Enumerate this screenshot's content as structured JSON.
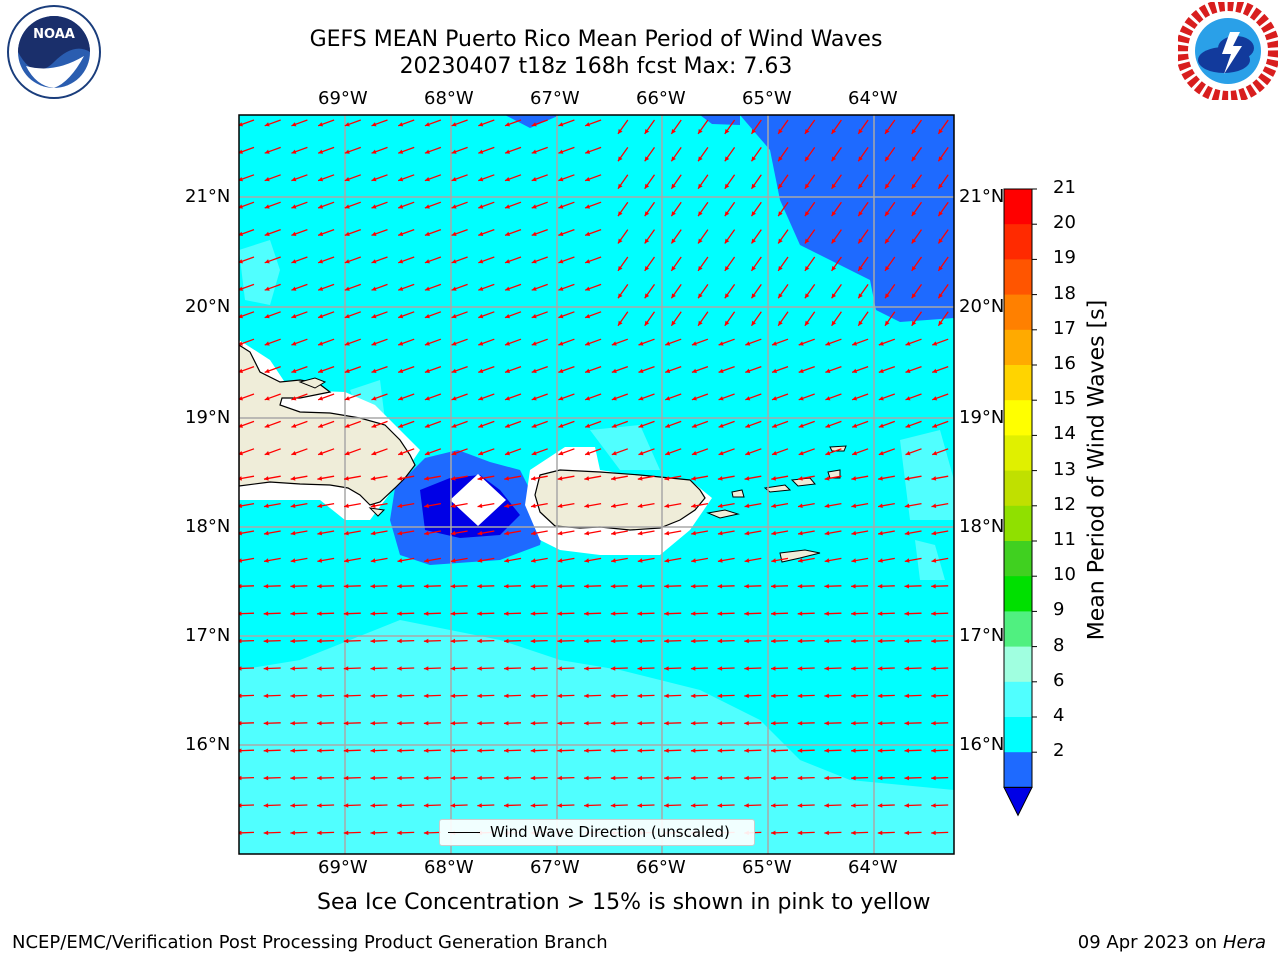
{
  "title_line1": "GEFS MEAN Puerto Rico Mean Period of Wind Waves",
  "title_line2": "20230407 t18z 168h fcst   Max: 7.63",
  "lon_ticks": [
    "69°W",
    "68°W",
    "67°W",
    "66°W",
    "65°W",
    "64°W"
  ],
  "lat_ticks": [
    "21°N",
    "20°N",
    "19°N",
    "18°N",
    "17°N",
    "16°N"
  ],
  "colorbar": {
    "label": "Mean Period of Wind Waves [s]",
    "ticks": [
      "21",
      "20",
      "19",
      "18",
      "17",
      "16",
      "15",
      "14",
      "13",
      "12",
      "11",
      "10",
      "9",
      "8",
      "6",
      "4",
      "2"
    ],
    "colors": [
      "#ff0000",
      "#ff2a00",
      "#ff5500",
      "#ff8000",
      "#ffaa00",
      "#ffd400",
      "#ffff00",
      "#e0f000",
      "#c0e000",
      "#90e000",
      "#40d020",
      "#00e000",
      "#50f080",
      "#a0ffe0",
      "#50ffff",
      "#00ffff",
      "#1e6aff"
    ],
    "extend_color": "#0000e6"
  },
  "legend_label": "Wind Wave Direction (unscaled)",
  "ice_note": "Sea Ice Concentration > 15% is shown in pink to yellow",
  "footer_left": "NCEP/EMC/Verification Post Processing Product Generation Branch",
  "footer_date": "09 Apr 2023 on ",
  "footer_host": "Hera",
  "logos": {
    "noaa": {
      "text": "NOAA",
      "ring_text": "NATIONAL OCEANIC AND ATMOSPHERIC ADMINISTRATION · U.S. DEPARTMENT OF COMMERCE"
    },
    "nws": {
      "ring_text": "NATIONAL WEATHER SERVICE"
    }
  },
  "colors": {
    "land": "#efedd9",
    "sea_main": "#00ffff",
    "sea_light": "#50ffff",
    "sea_blue": "#1e6aff",
    "sea_dark": "#0000e6",
    "arrow": "#ff0000"
  }
}
